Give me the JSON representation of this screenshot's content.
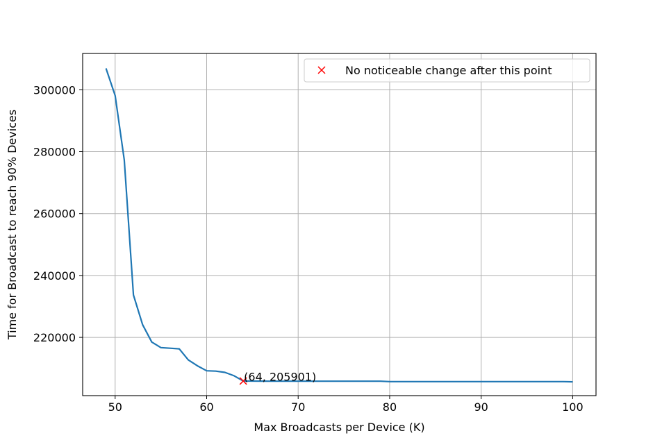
{
  "chart_data": {
    "type": "line",
    "title": "",
    "xlabel": "Max Broadcasts per Device (K)",
    "ylabel": "Time for Broadcast to reach 90% Devices",
    "xlim": [
      46.45,
      102.55
    ],
    "ylim": [
      201180,
      311730
    ],
    "xticks": [
      50,
      60,
      70,
      80,
      90,
      100
    ],
    "yticks": [
      220000,
      240000,
      260000,
      280000,
      300000
    ],
    "grid": true,
    "legend_position": "top-right",
    "series": [
      {
        "name": "",
        "color": "#1f77b4",
        "x": [
          49,
          50,
          51,
          52,
          53,
          54,
          55,
          56,
          57,
          58,
          59,
          60,
          61,
          62,
          63,
          64,
          65,
          66,
          67,
          68,
          69,
          70,
          71,
          72,
          73,
          74,
          75,
          76,
          77,
          78,
          79,
          80,
          81,
          82,
          83,
          84,
          85,
          86,
          87,
          88,
          89,
          90,
          91,
          92,
          93,
          94,
          95,
          96,
          97,
          98,
          99,
          100
        ],
        "y": [
          306900,
          298100,
          277300,
          233700,
          224100,
          218500,
          216700,
          216500,
          216300,
          212700,
          210800,
          209200,
          209100,
          208700,
          207600,
          205901,
          205880,
          205860,
          205850,
          205850,
          205850,
          205850,
          205850,
          205850,
          205850,
          205850,
          205850,
          205850,
          205850,
          205850,
          205850,
          205700,
          205700,
          205700,
          205700,
          205700,
          205700,
          205700,
          205700,
          205700,
          205700,
          205700,
          205700,
          205700,
          205700,
          205700,
          205700,
          205700,
          205700,
          205700,
          205700,
          205650
        ]
      }
    ],
    "marker": {
      "label": "No noticeable change after this point",
      "x": 64,
      "y": 205901,
      "symbol": "x",
      "color": "#ff0000"
    },
    "annotation": {
      "text": "(64, 205901)",
      "x": 64,
      "y": 205901
    }
  }
}
